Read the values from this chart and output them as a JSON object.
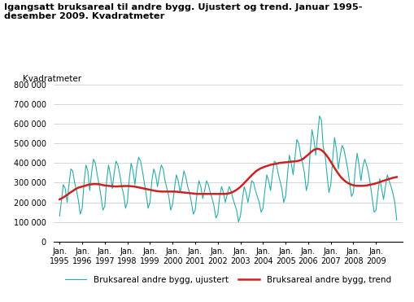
{
  "title": "Igangsatt bruksareal til andre bygg. Ujustert og trend. Januar 1995-\ndesember 2009. Kvadratmeter",
  "ylabel": "Kvadratmeter",
  "line1_label": "Bruksareal andre bygg, ujustert",
  "line2_label": "Bruksareal andre bygg, trend",
  "line1_color": "#2aada8",
  "line2_color": "#cc2222",
  "ylim": [
    0,
    800000
  ],
  "yticks": [
    0,
    100000,
    200000,
    300000,
    400000,
    500000,
    600000,
    700000,
    800000
  ],
  "ytick_labels": [
    "0",
    "100 000",
    "200 000",
    "300 000",
    "400 000",
    "500 000",
    "600 000",
    "700 000",
    "800 000"
  ],
  "background_color": "#ffffff",
  "grid_color": "#d0d0d0",
  "ujustert": [
    130000,
    210000,
    290000,
    270000,
    200000,
    290000,
    370000,
    360000,
    300000,
    260000,
    210000,
    140000,
    170000,
    300000,
    390000,
    360000,
    260000,
    350000,
    420000,
    400000,
    340000,
    290000,
    230000,
    160000,
    180000,
    310000,
    390000,
    340000,
    270000,
    350000,
    410000,
    390000,
    340000,
    280000,
    240000,
    170000,
    200000,
    320000,
    400000,
    360000,
    290000,
    380000,
    430000,
    410000,
    360000,
    300000,
    240000,
    170000,
    200000,
    310000,
    370000,
    340000,
    280000,
    340000,
    390000,
    370000,
    310000,
    270000,
    230000,
    160000,
    190000,
    270000,
    340000,
    310000,
    250000,
    300000,
    360000,
    330000,
    280000,
    250000,
    200000,
    140000,
    160000,
    250000,
    310000,
    280000,
    220000,
    260000,
    310000,
    290000,
    250000,
    220000,
    180000,
    120000,
    140000,
    230000,
    280000,
    250000,
    200000,
    240000,
    280000,
    260000,
    220000,
    190000,
    160000,
    100000,
    130000,
    210000,
    280000,
    250000,
    200000,
    250000,
    310000,
    300000,
    260000,
    230000,
    200000,
    150000,
    170000,
    260000,
    340000,
    310000,
    260000,
    340000,
    410000,
    400000,
    350000,
    310000,
    270000,
    200000,
    230000,
    340000,
    440000,
    400000,
    340000,
    430000,
    520000,
    500000,
    440000,
    400000,
    350000,
    260000,
    300000,
    450000,
    570000,
    520000,
    440000,
    540000,
    640000,
    620000,
    480000,
    440000,
    340000,
    250000,
    290000,
    420000,
    530000,
    470000,
    370000,
    440000,
    490000,
    470000,
    420000,
    370000,
    300000,
    230000,
    250000,
    370000,
    450000,
    390000,
    310000,
    380000,
    420000,
    390000,
    350000,
    290000,
    220000,
    150000,
    160000,
    250000,
    320000,
    270000,
    215000,
    280000,
    340000,
    310000,
    280000,
    245000,
    200000,
    110000
  ],
  "trend": [
    215000,
    220000,
    225000,
    232000,
    238000,
    245000,
    252000,
    258000,
    265000,
    270000,
    275000,
    278000,
    280000,
    283000,
    286000,
    289000,
    291000,
    292000,
    293000,
    293000,
    293000,
    292000,
    290000,
    288000,
    286000,
    285000,
    284000,
    283000,
    282000,
    281000,
    281000,
    281000,
    282000,
    282000,
    283000,
    283000,
    283000,
    283000,
    282000,
    281000,
    280000,
    278000,
    276000,
    274000,
    272000,
    270000,
    268000,
    266000,
    264000,
    262000,
    260000,
    258000,
    257000,
    256000,
    255000,
    255000,
    255000,
    255000,
    255000,
    255000,
    255000,
    255000,
    254000,
    253000,
    252000,
    251000,
    250000,
    249000,
    248000,
    247000,
    246000,
    245000,
    244000,
    243000,
    243000,
    243000,
    243000,
    243000,
    243000,
    243000,
    243000,
    243000,
    243000,
    243000,
    243000,
    243000,
    243000,
    243000,
    243000,
    244000,
    246000,
    249000,
    253000,
    258000,
    264000,
    271000,
    279000,
    288000,
    298000,
    308000,
    318000,
    328000,
    338000,
    347000,
    356000,
    363000,
    369000,
    374000,
    378000,
    382000,
    385000,
    388000,
    391000,
    393000,
    395000,
    397000,
    399000,
    401000,
    402000,
    403000,
    404000,
    405000,
    406000,
    407000,
    408000,
    409000,
    410000,
    412000,
    415000,
    420000,
    427000,
    435000,
    443000,
    452000,
    460000,
    467000,
    471000,
    473000,
    471000,
    466000,
    458000,
    448000,
    436000,
    422000,
    407000,
    391000,
    375000,
    360000,
    346000,
    333000,
    322000,
    313000,
    305000,
    299000,
    294000,
    290000,
    287000,
    285000,
    284000,
    284000,
    284000,
    284000,
    285000,
    286000,
    288000,
    290000,
    292000,
    294000,
    297000,
    300000,
    303000,
    307000,
    310000,
    313000,
    316000,
    319000,
    322000,
    325000,
    327000,
    329000
  ]
}
